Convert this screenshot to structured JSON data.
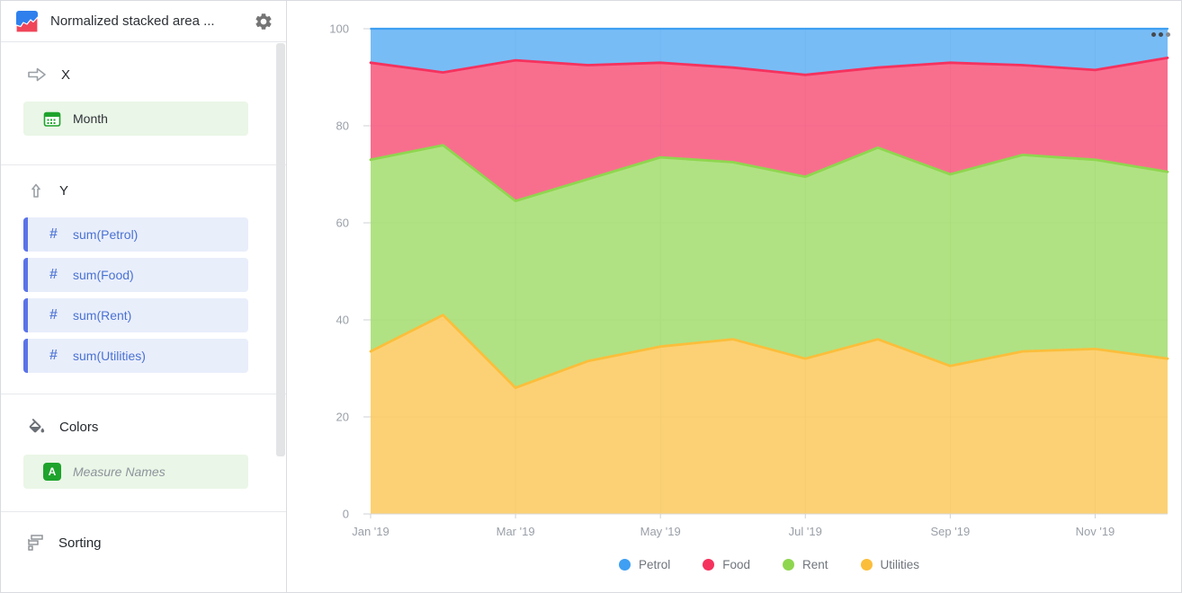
{
  "sidebar": {
    "title": "Normalized stacked area ...",
    "x_section": {
      "label": "X",
      "field": "Month"
    },
    "y_section": {
      "label": "Y",
      "fields": [
        "sum(Petrol)",
        "sum(Food)",
        "sum(Rent)",
        "sum(Utilities)"
      ]
    },
    "colors_section": {
      "label": "Colors",
      "field": "Measure Names"
    },
    "sorting_section": {
      "label": "Sorting"
    }
  },
  "chart_data": {
    "type": "area",
    "variant": "normalized-stacked",
    "x": [
      "Jan '19",
      "Feb '19",
      "Mar '19",
      "Apr '19",
      "May '19",
      "Jun '19",
      "Jul '19",
      "Aug '19",
      "Sep '19",
      "Oct '19",
      "Nov '19",
      "Dec '19"
    ],
    "x_tick_labels": [
      "Jan '19",
      "Mar '19",
      "May '19",
      "Jul '19",
      "Sep '19",
      "Nov '19"
    ],
    "x_tick_indices": [
      0,
      2,
      4,
      6,
      8,
      10
    ],
    "y_ticks": [
      0,
      20,
      40,
      60,
      80,
      100
    ],
    "ylim": [
      0,
      100
    ],
    "units": "percent",
    "grid": true,
    "legend_position": "bottom",
    "stack_order_bottom_to_top": [
      "Utilities",
      "Rent",
      "Food",
      "Petrol"
    ],
    "series": [
      {
        "name": "Petrol",
        "color": "#3f9ff2",
        "values": [
          7,
          9,
          6.5,
          7.5,
          7,
          8,
          9.5,
          8,
          7,
          7.5,
          8.5,
          6
        ]
      },
      {
        "name": "Food",
        "color": "#f5325e",
        "values": [
          20,
          15,
          29,
          23.5,
          19.5,
          19.5,
          21,
          16.5,
          23,
          18.5,
          18.5,
          23.5
        ]
      },
      {
        "name": "Rent",
        "color": "#8fd64f",
        "values": [
          39.5,
          35,
          38.5,
          37.5,
          39,
          36.5,
          37.5,
          39.5,
          39.5,
          40.5,
          39,
          38.5
        ]
      },
      {
        "name": "Utilities",
        "color": "#fbbe3b",
        "values": [
          33.5,
          41,
          26,
          31.5,
          34.5,
          36,
          32,
          36,
          30.5,
          33.5,
          34,
          32
        ]
      }
    ]
  }
}
